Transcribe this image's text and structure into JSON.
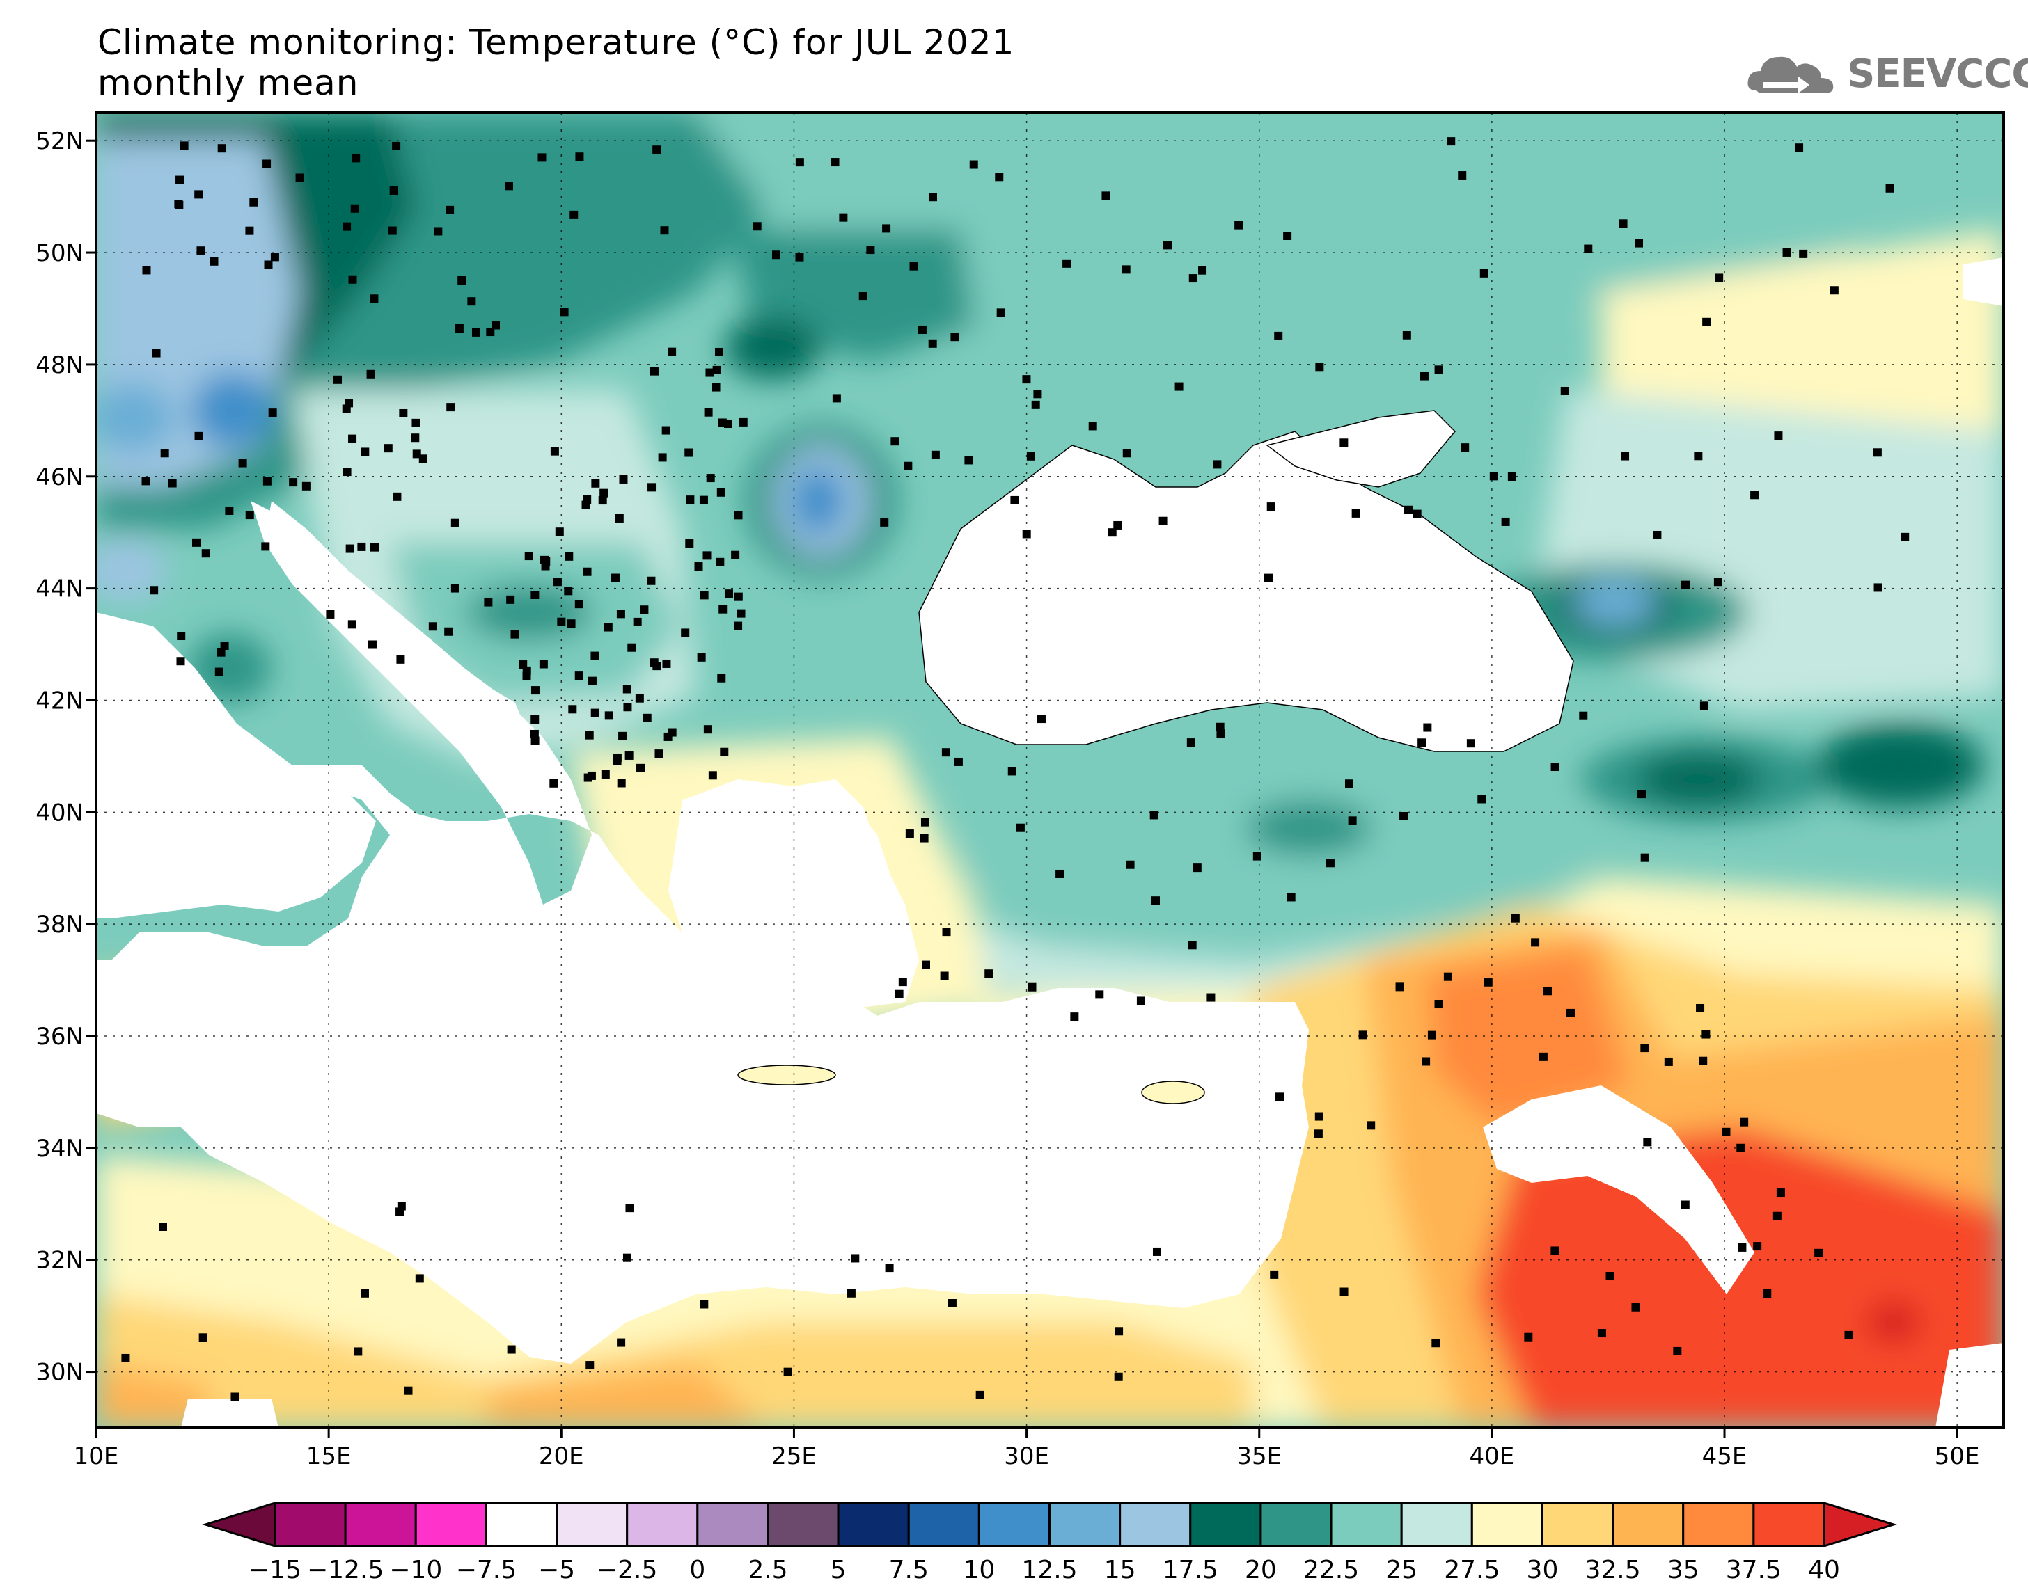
{
  "title": {
    "line1": "Climate monitoring: Temperature (°C) for JUL 2021",
    "line2": "monthly mean"
  },
  "logo": {
    "text": "SEEVCCC",
    "icon": "cloud-icon"
  },
  "map": {
    "lon_range": [
      10,
      51
    ],
    "lat_range": [
      29,
      52.5
    ],
    "lat_ticks": [
      {
        "value": 52,
        "label": "52N"
      },
      {
        "value": 50,
        "label": "50N"
      },
      {
        "value": 48,
        "label": "48N"
      },
      {
        "value": 46,
        "label": "46N"
      },
      {
        "value": 44,
        "label": "44N"
      },
      {
        "value": 42,
        "label": "42N"
      },
      {
        "value": 40,
        "label": "40N"
      },
      {
        "value": 38,
        "label": "38N"
      },
      {
        "value": 36,
        "label": "36N"
      },
      {
        "value": 34,
        "label": "34N"
      },
      {
        "value": 32,
        "label": "32N"
      },
      {
        "value": 30,
        "label": "30N"
      }
    ],
    "lon_ticks": [
      {
        "value": 10,
        "label": "10E"
      },
      {
        "value": 15,
        "label": "15E"
      },
      {
        "value": 20,
        "label": "20E"
      },
      {
        "value": 25,
        "label": "25E"
      },
      {
        "value": 30,
        "label": "30E"
      },
      {
        "value": 35,
        "label": "35E"
      },
      {
        "value": 40,
        "label": "40E"
      },
      {
        "value": 45,
        "label": "45E"
      },
      {
        "value": 50,
        "label": "50E"
      }
    ]
  },
  "colorbar": {
    "labels": [
      "−15",
      "−12.5",
      "−10",
      "−7.5",
      "−5",
      "−2.5",
      "0",
      "2.5",
      "5",
      "7.5",
      "10",
      "12.5",
      "15",
      "17.5",
      "20",
      "22.5",
      "25",
      "27.5",
      "30",
      "32.5",
      "35",
      "37.5",
      "40"
    ],
    "colors": [
      "#6b0a3a",
      "#a10b6c",
      "#cc1499",
      "#ff33cc",
      "#ffffff",
      "#f1e3f5",
      "#dcb6e6",
      "#ab8bbf",
      "#6b4a6e",
      "#0a2c6e",
      "#1e62a8",
      "#418fca",
      "#6aaed6",
      "#9cc5e1",
      "#006a5a",
      "#2f9587",
      "#7cccbd",
      "#c5e8e0",
      "#fff8c0",
      "#ffd777",
      "#ffb452",
      "#ff8a3d",
      "#f74a2a",
      "#d51f24"
    ]
  }
}
